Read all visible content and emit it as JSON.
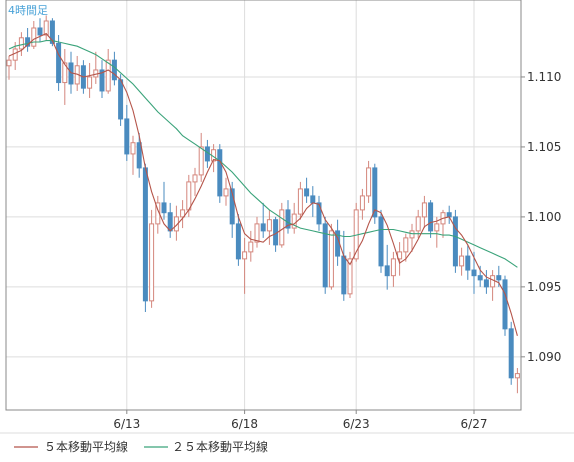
{
  "chart_data": {
    "type": "candlestick",
    "title": "4時間足",
    "ylim": [
      1.0862,
      1.1155
    ],
    "y_ticks": [
      1.11,
      1.105,
      1.1,
      1.095,
      1.09
    ],
    "y_tick_labels": [
      "1.110",
      "1.105",
      "1.100",
      "1.095",
      "1.090"
    ],
    "x_tick_labels": [
      "6/13",
      "6/18",
      "6/23",
      "6/27"
    ],
    "x_tick_index": [
      19,
      38,
      56,
      75
    ],
    "grid": true,
    "legend": "bottom",
    "colors": {
      "up": "#d4867c",
      "down": "#4a8bbf",
      "ma5": "#b5554a",
      "ma25": "#3aa37a",
      "grid": "#dddddd",
      "axis": "#888888"
    },
    "series": [
      {
        "name": "５本移動平均線",
        "color": "#b5554a"
      },
      {
        "name": "２５本移動平均線",
        "color": "#3aa37a"
      }
    ],
    "candles": [
      [
        1.1108,
        1.1115,
        1.1098,
        1.1112
      ],
      [
        1.1112,
        1.1125,
        1.1105,
        1.112
      ],
      [
        1.112,
        1.1132,
        1.1115,
        1.1128
      ],
      [
        1.1128,
        1.1135,
        1.1118,
        1.1122
      ],
      [
        1.1122,
        1.114,
        1.112,
        1.1135
      ],
      [
        1.1135,
        1.1142,
        1.1125,
        1.113
      ],
      [
        1.113,
        1.1144,
        1.1126,
        1.114
      ],
      [
        1.114,
        1.1142,
        1.1122,
        1.1124
      ],
      [
        1.1124,
        1.113,
        1.109,
        1.1096
      ],
      [
        1.1096,
        1.112,
        1.108,
        1.111
      ],
      [
        1.111,
        1.1118,
        1.1088,
        1.1095
      ],
      [
        1.1095,
        1.1115,
        1.109,
        1.1108
      ],
      [
        1.1108,
        1.1112,
        1.1088,
        1.1092
      ],
      [
        1.1092,
        1.111,
        1.1085,
        1.11
      ],
      [
        1.11,
        1.1118,
        1.1095,
        1.1105
      ],
      [
        1.1105,
        1.1112,
        1.1085,
        1.109
      ],
      [
        1.109,
        1.112,
        1.1088,
        1.1112
      ],
      [
        1.1112,
        1.1118,
        1.1094,
        1.1098
      ],
      [
        1.1098,
        1.1102,
        1.1065,
        1.107
      ],
      [
        1.107,
        1.108,
        1.104,
        1.1045
      ],
      [
        1.1045,
        1.1058,
        1.103,
        1.1053
      ],
      [
        1.1053,
        1.106,
        1.1028,
        1.1035
      ],
      [
        1.1035,
        1.1038,
        1.0932,
        1.094
      ],
      [
        1.094,
        1.1005,
        1.0935,
        1.0995
      ],
      [
        1.0995,
        1.1015,
        1.0988,
        1.101
      ],
      [
        1.101,
        1.1025,
        1.0998,
        1.1003
      ],
      [
        1.1003,
        1.101,
        1.0985,
        1.099
      ],
      [
        1.099,
        1.1008,
        1.0983,
        1.1
      ],
      [
        1.1,
        1.1012,
        1.0992,
        1.1005
      ],
      [
        1.1005,
        1.103,
        1.1,
        1.1025
      ],
      [
        1.1025,
        1.1035,
        1.1015,
        1.103
      ],
      [
        1.103,
        1.106,
        1.1025,
        1.105
      ],
      [
        1.105,
        1.1055,
        1.1035,
        1.104
      ],
      [
        1.104,
        1.1052,
        1.1032,
        1.1048
      ],
      [
        1.1048,
        1.1052,
        1.101,
        1.1015
      ],
      [
        1.1015,
        1.1028,
        1.1008,
        1.102
      ],
      [
        1.102,
        1.1025,
        1.0985,
        1.0995
      ],
      [
        1.0995,
        1.1002,
        1.0965,
        1.097
      ],
      [
        1.097,
        1.0985,
        1.0945,
        1.0975
      ],
      [
        1.0975,
        1.099,
        1.0968,
        1.0982
      ],
      [
        1.0982,
        1.1,
        1.0978,
        1.0995
      ],
      [
        1.0995,
        1.101,
        1.0985,
        1.099
      ],
      [
        1.099,
        1.1005,
        1.098,
        1.0998
      ],
      [
        1.0998,
        1.1,
        1.0975,
        1.098
      ],
      [
        1.098,
        1.101,
        1.0978,
        1.1005
      ],
      [
        1.1005,
        1.1012,
        1.0988,
        1.0992
      ],
      [
        1.0992,
        1.101,
        1.0988,
        1.1002
      ],
      [
        1.1002,
        1.1025,
        1.0998,
        1.102
      ],
      [
        1.102,
        1.1028,
        1.101,
        1.1015
      ],
      [
        1.1015,
        1.1022,
        1.1,
        1.101
      ],
      [
        1.101,
        1.1015,
        1.099,
        1.0995
      ],
      [
        1.0995,
        1.1,
        1.0945,
        1.095
      ],
      [
        1.095,
        1.0995,
        1.0948,
        1.099
      ],
      [
        1.099,
        1.0998,
        1.0965,
        1.0972
      ],
      [
        1.0972,
        1.099,
        1.094,
        1.0945
      ],
      [
        1.0945,
        1.0975,
        1.0942,
        1.097
      ],
      [
        1.097,
        1.101,
        1.0968,
        1.1005
      ],
      [
        1.1005,
        1.102,
        1.0998,
        1.1015
      ],
      [
        1.1015,
        1.104,
        1.101,
        1.1035
      ],
      [
        1.1035,
        1.1038,
        1.0995,
        1.1
      ],
      [
        1.1,
        1.1005,
        1.096,
        1.0965
      ],
      [
        1.0965,
        1.098,
        1.0948,
        1.0958
      ],
      [
        1.0958,
        1.0975,
        1.095,
        1.097
      ],
      [
        1.097,
        1.0982,
        1.0958,
        1.0975
      ],
      [
        1.0975,
        1.0988,
        1.0968,
        1.0985
      ],
      [
        1.0985,
        1.0995,
        1.0975,
        1.099
      ],
      [
        1.099,
        1.1005,
        1.0985,
        1.1
      ],
      [
        1.1,
        1.1015,
        1.0992,
        1.101
      ],
      [
        1.101,
        1.1012,
        1.0985,
        1.099
      ],
      [
        1.099,
        1.1,
        1.0978,
        1.0995
      ],
      [
        1.0995,
        1.1005,
        1.0985,
        1.1003
      ],
      [
        1.1003,
        1.1008,
        1.0995,
        1.1
      ],
      [
        1.1,
        1.1005,
        1.096,
        1.0965
      ],
      [
        1.0965,
        1.0978,
        1.0958,
        1.0972
      ],
      [
        1.0972,
        1.098,
        1.0955,
        1.0962
      ],
      [
        1.0962,
        1.0975,
        1.0945,
        1.0958
      ],
      [
        1.0958,
        1.0965,
        1.095,
        1.0955
      ],
      [
        1.0955,
        1.0962,
        1.0945,
        1.095
      ],
      [
        1.095,
        1.0962,
        1.094,
        1.0958
      ],
      [
        1.0958,
        1.0965,
        1.095,
        1.0955
      ],
      [
        1.0955,
        1.0958,
        1.0915,
        1.092
      ],
      [
        1.092,
        1.0925,
        1.088,
        1.0885
      ],
      [
        1.0885,
        1.0892,
        1.0874,
        1.0888
      ]
    ],
    "ma5": [
      1.1115,
      1.1117,
      1.1119,
      1.1123,
      1.1127,
      1.1129,
      1.1131,
      1.1126,
      1.1116,
      1.1109,
      1.1103,
      1.1102,
      1.11,
      1.1101,
      1.1102,
      1.1103,
      1.1105,
      1.1102,
      1.1098,
      1.1089,
      1.1076,
      1.1058,
      1.1035,
      1.1018,
      1.1005,
      1.0995,
      1.099,
      1.0994,
      1.0999,
      1.1005,
      1.1013,
      1.1022,
      1.1032,
      1.1041,
      1.104,
      1.1032,
      1.1017,
      1.1,
      1.0988,
      1.0984,
      1.0983,
      1.0982,
      1.0986,
      1.0988,
      1.0991,
      1.0994,
      1.0995,
      1.0999,
      1.1006,
      1.101,
      1.1009,
      1.0998,
      1.0992,
      1.0985,
      1.0972,
      1.0966,
      1.0975,
      1.0983,
      1.0995,
      1.1005,
      1.1003,
      1.0994,
      1.0981,
      1.0967,
      1.097,
      1.0976,
      1.0984,
      1.0993,
      1.0996,
      1.0997,
      1.0999,
      1.1,
      1.0992,
      1.0987,
      1.098,
      1.0971,
      1.0962,
      1.0957,
      1.0955,
      1.0953,
      1.0945,
      1.0931,
      1.0915
    ],
    "ma25": [
      1.112,
      1.1122,
      1.1123,
      1.1124,
      1.1125,
      1.1125,
      1.1126,
      1.1126,
      1.1125,
      1.1124,
      1.1123,
      1.1122,
      1.112,
      1.1118,
      1.1116,
      1.1113,
      1.111,
      1.1107,
      1.1103,
      1.1099,
      1.1095,
      1.109,
      1.1085,
      1.108,
      1.1075,
      1.1071,
      1.1067,
      1.1063,
      1.1058,
      1.1055,
      1.1052,
      1.1049,
      1.1046,
      1.1043,
      1.104,
      1.1036,
      1.1032,
      1.1027,
      1.1022,
      1.1017,
      1.1013,
      1.1009,
      1.1005,
      1.1002,
      1.0999,
      1.0996,
      1.0994,
      1.0992,
      1.0991,
      1.099,
      1.0989,
      1.0988,
      1.0987,
      1.0987,
      1.0986,
      1.0986,
      1.0987,
      1.0988,
      1.0989,
      1.099,
      1.0991,
      1.0991,
      1.0991,
      1.099,
      1.0989,
      1.0988,
      1.0988,
      1.0988,
      1.0988,
      1.0988,
      1.0987,
      1.0987,
      1.0986,
      1.0984,
      1.0982,
      1.098,
      1.0978,
      1.0976,
      1.0974,
      1.0972,
      1.097,
      1.0967,
      1.0964
    ]
  }
}
